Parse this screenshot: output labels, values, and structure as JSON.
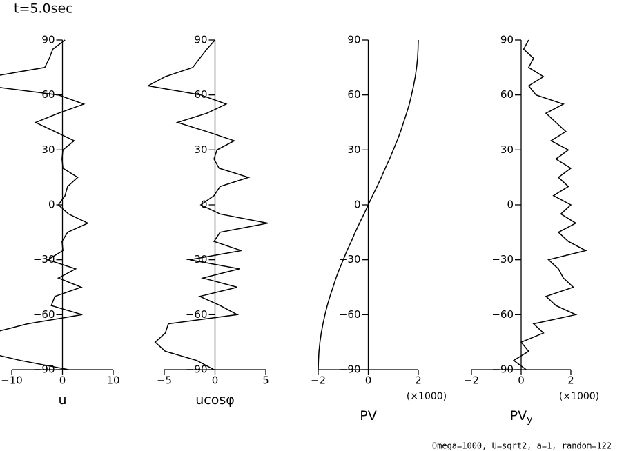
{
  "title": "t=5.0sec",
  "footer": "Omega=1000, U=sqrt2, a=1, random=122",
  "chart_data": [
    {
      "type": "line",
      "xlabel": "u",
      "y": [
        90,
        85,
        80,
        75,
        70,
        65,
        60,
        55,
        50,
        45,
        40,
        35,
        30,
        25,
        20,
        15,
        10,
        5,
        0,
        -5,
        -10,
        -15,
        -20,
        -25,
        -30,
        -35,
        -40,
        -45,
        -50,
        -55,
        -60,
        -65,
        -70,
        -75,
        -80,
        -85,
        -90
      ],
      "values": [
        0.5,
        -1.9,
        -2.6,
        -3.5,
        -14,
        -15,
        -0.8,
        4.2,
        -0.8,
        -5.3,
        -1.5,
        2.3,
        0.1,
        -0.1,
        0.1,
        3.0,
        1.0,
        0.5,
        -0.8,
        1.2,
        5.0,
        1.0,
        -0.1,
        0.1,
        -2.9,
        2.6,
        -0.8,
        3.7,
        -1.5,
        -2.2,
        3.9,
        -6.9,
        -14,
        -16,
        -16,
        -8.3,
        1.2
      ],
      "xlim": [
        -10,
        10
      ],
      "xticks": [
        {
          "value": -10,
          "label": "−10"
        },
        0,
        10
      ],
      "ylim": [
        -90,
        90
      ],
      "yticks": [
        90,
        60,
        30,
        0,
        {
          "value": -30,
          "label": "−30"
        },
        {
          "value": -60,
          "label": "−60"
        },
        {
          "value": -90,
          "label": "−90"
        }
      ]
    },
    {
      "type": "line",
      "xlabel": "ucosφ",
      "y": [
        90,
        85,
        80,
        75,
        70,
        65,
        60,
        55,
        50,
        45,
        40,
        35,
        30,
        25,
        20,
        15,
        10,
        5,
        0,
        -5,
        -10,
        -15,
        -20,
        -25,
        -30,
        -35,
        -40,
        -45,
        -50,
        -55,
        -60,
        -65,
        -70,
        -75,
        -80,
        -85,
        -90
      ],
      "values": [
        0,
        -0.8,
        -1.5,
        -2.2,
        -4.9,
        -6.6,
        -1.4,
        1.1,
        -0.8,
        -3.7,
        -0.8,
        1.9,
        0.2,
        -0.1,
        0.4,
        3.3,
        0.5,
        -0.1,
        -1.4,
        0.5,
        5.2,
        0.5,
        -0.1,
        2.6,
        -2.5,
        2.4,
        -1.2,
        2.2,
        -1.5,
        0.5,
        2.2,
        -4.6,
        -4.9,
        -5.9,
        -4.9,
        -1.8,
        -0.1
      ],
      "xlim": [
        -5,
        5
      ],
      "xticks": [
        {
          "value": -5,
          "label": "−5"
        },
        0,
        5
      ],
      "ylim": [
        -90,
        90
      ],
      "yticks": [
        90,
        60,
        30,
        0,
        {
          "value": -30,
          "label": "−30"
        },
        {
          "value": -60,
          "label": "−60"
        },
        {
          "value": -90,
          "label": "−90"
        }
      ]
    },
    {
      "type": "line",
      "xlabel": "PV",
      "scale_note": "(×1000)",
      "y": [
        90,
        85,
        80,
        75,
        70,
        65,
        60,
        55,
        50,
        45,
        40,
        35,
        30,
        25,
        20,
        15,
        10,
        5,
        0,
        -5,
        -10,
        -15,
        -20,
        -25,
        -30,
        -35,
        -40,
        -45,
        -50,
        -55,
        -60,
        -65,
        -70,
        -75,
        -80,
        -85,
        -90
      ],
      "values": [
        2,
        1.99,
        1.97,
        1.93,
        1.88,
        1.81,
        1.73,
        1.64,
        1.53,
        1.41,
        1.29,
        1.15,
        1.0,
        0.85,
        0.68,
        0.52,
        0.35,
        0.17,
        0,
        -0.17,
        -0.35,
        -0.52,
        -0.68,
        -0.85,
        -1.0,
        -1.15,
        -1.29,
        -1.41,
        -1.53,
        -1.64,
        -1.73,
        -1.81,
        -1.88,
        -1.93,
        -1.97,
        -1.99,
        -2
      ],
      "xlim": [
        -2,
        2
      ],
      "xticks": [
        {
          "value": -2,
          "label": "−2"
        },
        0,
        2
      ],
      "ylim": [
        -90,
        90
      ],
      "yticks": [
        90,
        60,
        30,
        0,
        {
          "value": -30,
          "label": "−30"
        },
        {
          "value": -60,
          "label": "−60"
        },
        {
          "value": -90,
          "label": "−90"
        }
      ]
    },
    {
      "type": "line",
      "xlabel": "PV",
      "xlabel_sub": "y",
      "scale_note": "(×1000)",
      "y": [
        90,
        85,
        80,
        75,
        70,
        65,
        60,
        55,
        50,
        45,
        40,
        35,
        30,
        25,
        20,
        15,
        10,
        5,
        0,
        -5,
        -10,
        -15,
        -20,
        -25,
        -30,
        -35,
        -40,
        -45,
        -50,
        -55,
        -60,
        -65,
        -70,
        -75,
        -80,
        -85,
        -90
      ],
      "values": [
        0.3,
        0.1,
        0.5,
        0.3,
        0.9,
        0.3,
        0.6,
        1.7,
        1.0,
        1.4,
        1.8,
        1.2,
        1.9,
        1.4,
        2.0,
        1.5,
        1.9,
        1.3,
        2.0,
        1.6,
        2.2,
        1.5,
        1.9,
        2.6,
        1.1,
        1.5,
        1.7,
        2.1,
        1.0,
        1.4,
        2.2,
        0.5,
        0.9,
        0.0,
        0.3,
        -0.3,
        0.2
      ],
      "xlim": [
        -2,
        2
      ],
      "xticks": [
        {
          "value": -2,
          "label": "−2"
        },
        0,
        2
      ],
      "ylim": [
        -90,
        90
      ],
      "yticks": [
        90,
        60,
        30,
        0,
        {
          "value": -30,
          "label": "−30"
        },
        {
          "value": -60,
          "label": "−60"
        },
        {
          "value": -90,
          "label": "−90"
        }
      ]
    }
  ]
}
